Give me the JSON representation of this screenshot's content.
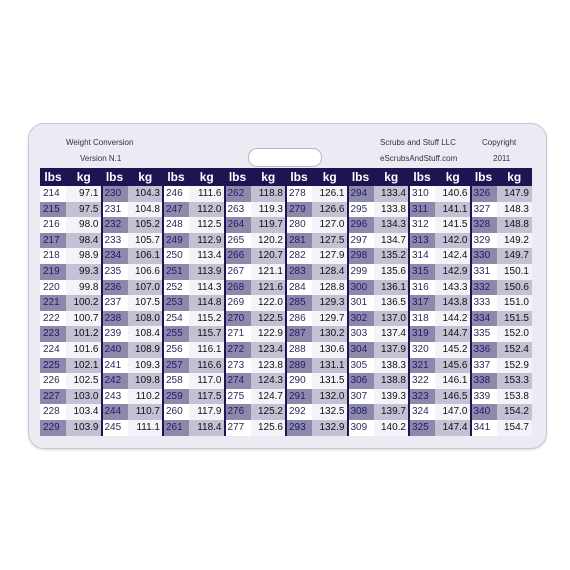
{
  "header": {
    "title": "Weight Conversion",
    "version": "Version N.1",
    "company": "Scrubs and Stuff LLC",
    "website": "eScrubsAndStuff.com",
    "copyright": "Copyright",
    "year": "2011"
  },
  "table": {
    "columns": [
      {
        "lbs_label": "lbs",
        "kg_label": "kg",
        "rows": [
          [
            214,
            "97.1"
          ],
          [
            215,
            "97.5"
          ],
          [
            216,
            "98.0"
          ],
          [
            217,
            "98.4"
          ],
          [
            218,
            "98.9"
          ],
          [
            219,
            "99.3"
          ],
          [
            220,
            "99.8"
          ],
          [
            221,
            "100.2"
          ],
          [
            222,
            "100.7"
          ],
          [
            223,
            "101.2"
          ],
          [
            224,
            "101.6"
          ],
          [
            225,
            "102.1"
          ],
          [
            226,
            "102.5"
          ],
          [
            227,
            "103.0"
          ],
          [
            228,
            "103.4"
          ],
          [
            229,
            "103.9"
          ]
        ]
      },
      {
        "lbs_label": "lbs",
        "kg_label": "kg",
        "rows": [
          [
            230,
            "104.3"
          ],
          [
            231,
            "104.8"
          ],
          [
            232,
            "105.2"
          ],
          [
            233,
            "105.7"
          ],
          [
            234,
            "106.1"
          ],
          [
            235,
            "106.6"
          ],
          [
            236,
            "107.0"
          ],
          [
            237,
            "107.5"
          ],
          [
            238,
            "108.0"
          ],
          [
            239,
            "108.4"
          ],
          [
            240,
            "108.9"
          ],
          [
            241,
            "109.3"
          ],
          [
            242,
            "109.8"
          ],
          [
            243,
            "110.2"
          ],
          [
            244,
            "110.7"
          ],
          [
            245,
            "111.1"
          ]
        ]
      },
      {
        "lbs_label": "lbs",
        "kg_label": "kg",
        "rows": [
          [
            246,
            "111.6"
          ],
          [
            247,
            "112.0"
          ],
          [
            248,
            "112.5"
          ],
          [
            249,
            "112.9"
          ],
          [
            250,
            "113.4"
          ],
          [
            251,
            "113.9"
          ],
          [
            252,
            "114.3"
          ],
          [
            253,
            "114.8"
          ],
          [
            254,
            "115.2"
          ],
          [
            255,
            "115.7"
          ],
          [
            256,
            "116.1"
          ],
          [
            257,
            "116.6"
          ],
          [
            258,
            "117.0"
          ],
          [
            259,
            "117.5"
          ],
          [
            260,
            "117.9"
          ],
          [
            261,
            "118.4"
          ]
        ]
      },
      {
        "lbs_label": "lbs",
        "kg_label": "kg",
        "rows": [
          [
            262,
            "118.8"
          ],
          [
            263,
            "119.3"
          ],
          [
            264,
            "119.7"
          ],
          [
            265,
            "120.2"
          ],
          [
            266,
            "120.7"
          ],
          [
            267,
            "121.1"
          ],
          [
            268,
            "121.6"
          ],
          [
            269,
            "122.0"
          ],
          [
            270,
            "122.5"
          ],
          [
            271,
            "122.9"
          ],
          [
            272,
            "123.4"
          ],
          [
            273,
            "123.8"
          ],
          [
            274,
            "124.3"
          ],
          [
            275,
            "124.7"
          ],
          [
            276,
            "125.2"
          ],
          [
            277,
            "125.6"
          ]
        ]
      },
      {
        "lbs_label": "lbs",
        "kg_label": "kg",
        "rows": [
          [
            278,
            "126.1"
          ],
          [
            279,
            "126.6"
          ],
          [
            280,
            "127.0"
          ],
          [
            281,
            "127.5"
          ],
          [
            282,
            "127.9"
          ],
          [
            283,
            "128.4"
          ],
          [
            284,
            "128.8"
          ],
          [
            285,
            "129.3"
          ],
          [
            286,
            "129.7"
          ],
          [
            287,
            "130.2"
          ],
          [
            288,
            "130.6"
          ],
          [
            289,
            "131.1"
          ],
          [
            290,
            "131.5"
          ],
          [
            291,
            "132.0"
          ],
          [
            292,
            "132.5"
          ],
          [
            293,
            "132.9"
          ]
        ]
      },
      {
        "lbs_label": "lbs",
        "kg_label": "kg",
        "rows": [
          [
            294,
            "133.4"
          ],
          [
            295,
            "133.8"
          ],
          [
            296,
            "134.3"
          ],
          [
            297,
            "134.7"
          ],
          [
            298,
            "135.2"
          ],
          [
            299,
            "135.6"
          ],
          [
            300,
            "136.1"
          ],
          [
            301,
            "136.5"
          ],
          [
            302,
            "137.0"
          ],
          [
            303,
            "137.4"
          ],
          [
            304,
            "137.9"
          ],
          [
            305,
            "138.3"
          ],
          [
            306,
            "138.8"
          ],
          [
            307,
            "139.3"
          ],
          [
            308,
            "139.7"
          ],
          [
            309,
            "140.2"
          ]
        ]
      },
      {
        "lbs_label": "lbs",
        "kg_label": "kg",
        "rows": [
          [
            310,
            "140.6"
          ],
          [
            311,
            "141.1"
          ],
          [
            312,
            "141.5"
          ],
          [
            313,
            "142.0"
          ],
          [
            314,
            "142.4"
          ],
          [
            315,
            "142.9"
          ],
          [
            316,
            "143.3"
          ],
          [
            317,
            "143.8"
          ],
          [
            318,
            "144.2"
          ],
          [
            319,
            "144.7"
          ],
          [
            320,
            "145.2"
          ],
          [
            321,
            "145.6"
          ],
          [
            322,
            "146.1"
          ],
          [
            323,
            "146.5"
          ],
          [
            324,
            "147.0"
          ],
          [
            325,
            "147.4"
          ]
        ]
      },
      {
        "lbs_label": "lbs",
        "kg_label": "kg",
        "rows": [
          [
            326,
            "147.9"
          ],
          [
            327,
            "148.3"
          ],
          [
            328,
            "148.8"
          ],
          [
            329,
            "149.2"
          ],
          [
            330,
            "149.7"
          ],
          [
            331,
            "150.1"
          ],
          [
            332,
            "150.6"
          ],
          [
            333,
            "151.0"
          ],
          [
            334,
            "151.5"
          ],
          [
            335,
            "152.0"
          ],
          [
            336,
            "152.4"
          ],
          [
            337,
            "152.9"
          ],
          [
            338,
            "153.3"
          ],
          [
            339,
            "153.8"
          ],
          [
            340,
            "154.2"
          ],
          [
            341,
            "154.7"
          ]
        ]
      }
    ]
  }
}
